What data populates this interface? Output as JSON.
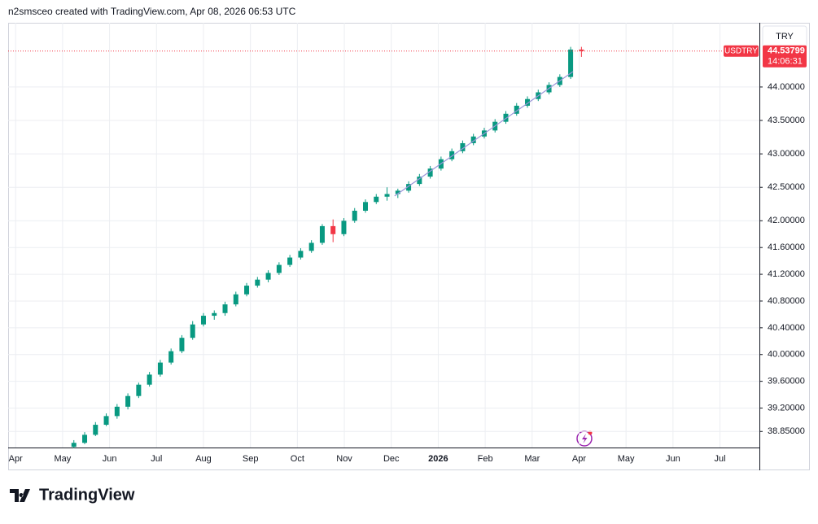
{
  "header": "n2smsceo created with TradingView.com, Apr 08, 2026 06:53 UTC",
  "logo": "TradingView",
  "chart_data": {
    "type": "candlestick",
    "currency": "TRY",
    "symbol": "USDTRY",
    "last": 44.53799,
    "countdown": "14:06:31",
    "up_color": "#089981",
    "down_color": "#f23645",
    "grid": true,
    "xlim": [
      -0.16,
      15.84
    ],
    "xticks": [
      {
        "value": 0,
        "label": "Apr"
      },
      {
        "value": 1,
        "label": "May"
      },
      {
        "value": 2,
        "label": "Jun"
      },
      {
        "value": 3,
        "label": "Jul"
      },
      {
        "value": 4,
        "label": "Aug"
      },
      {
        "value": 5,
        "label": "Sep"
      },
      {
        "value": 6,
        "label": "Oct"
      },
      {
        "value": 7,
        "label": "Nov"
      },
      {
        "value": 8,
        "label": "Dec"
      },
      {
        "value": 9,
        "label": "2026"
      },
      {
        "value": 10,
        "label": "Feb"
      },
      {
        "value": 11,
        "label": "Mar"
      },
      {
        "value": 12,
        "label": "Apr"
      },
      {
        "value": 13,
        "label": "May"
      },
      {
        "value": 14,
        "label": "Jun"
      },
      {
        "value": 15,
        "label": "Jul"
      }
    ],
    "ylim": [
      38.61,
      44.96
    ],
    "yticks": [
      {
        "value": 38.85,
        "label": "38.85000"
      },
      {
        "value": 39.2,
        "label": "39.20000"
      },
      {
        "value": 39.6,
        "label": "39.60000"
      },
      {
        "value": 40,
        "label": "40.00000"
      },
      {
        "value": 40.4,
        "label": "40.40000"
      },
      {
        "value": 40.8,
        "label": "40.80000"
      },
      {
        "value": 41.2,
        "label": "41.20000"
      },
      {
        "value": 41.6,
        "label": "41.60000"
      },
      {
        "value": 42,
        "label": "42.00000"
      },
      {
        "value": 42.5,
        "label": "42.50000"
      },
      {
        "value": 43,
        "label": "43.00000"
      },
      {
        "value": 43.5,
        "label": "43.50000"
      },
      {
        "value": 44,
        "label": "44.00000"
      }
    ],
    "x": [
      1.24,
      1.47,
      1.7,
      1.93,
      2.16,
      2.39,
      2.62,
      2.85,
      3.08,
      3.31,
      3.54,
      3.77,
      4.0,
      4.23,
      4.46,
      4.69,
      4.92,
      5.15,
      5.38,
      5.61,
      5.84,
      6.07,
      6.3,
      6.53,
      6.76,
      6.99,
      7.22,
      7.45,
      7.68,
      7.91,
      8.14,
      8.37,
      8.6,
      8.83,
      9.06,
      9.29,
      9.52,
      9.75,
      9.98,
      10.21,
      10.44,
      10.67,
      10.9,
      11.13,
      11.36,
      11.59,
      11.82,
      12.05
    ],
    "ohlc": [
      [
        38.62,
        38.72,
        38.6,
        38.68
      ],
      [
        38.68,
        38.84,
        38.66,
        38.8
      ],
      [
        38.8,
        38.99,
        38.78,
        38.95
      ],
      [
        38.95,
        39.12,
        38.93,
        39.08
      ],
      [
        39.08,
        39.26,
        39.04,
        39.22
      ],
      [
        39.22,
        39.42,
        39.18,
        39.38
      ],
      [
        39.38,
        39.58,
        39.35,
        39.55
      ],
      [
        39.55,
        39.74,
        39.52,
        39.7
      ],
      [
        39.7,
        39.92,
        39.67,
        39.88
      ],
      [
        39.88,
        40.09,
        39.85,
        40.05
      ],
      [
        40.05,
        40.29,
        40.02,
        40.25
      ],
      [
        40.25,
        40.5,
        40.22,
        40.45
      ],
      [
        40.45,
        40.62,
        40.42,
        40.58
      ],
      [
        40.58,
        40.66,
        40.52,
        40.62
      ],
      [
        40.62,
        40.79,
        40.58,
        40.75
      ],
      [
        40.75,
        40.94,
        40.72,
        40.9
      ],
      [
        40.9,
        41.07,
        40.87,
        41.03
      ],
      [
        41.03,
        41.16,
        41,
        41.12
      ],
      [
        41.12,
        41.26,
        41.08,
        41.22
      ],
      [
        41.22,
        41.38,
        41.19,
        41.34
      ],
      [
        41.34,
        41.49,
        41.31,
        41.45
      ],
      [
        41.45,
        41.59,
        41.42,
        41.55
      ],
      [
        41.55,
        41.71,
        41.52,
        41.67
      ],
      [
        41.67,
        41.95,
        41.64,
        41.92
      ],
      [
        41.92,
        42.02,
        41.68,
        41.8
      ],
      [
        41.8,
        42.04,
        41.77,
        42
      ],
      [
        42,
        42.19,
        41.97,
        42.15
      ],
      [
        42.15,
        42.32,
        42.12,
        42.28
      ],
      [
        42.28,
        42.4,
        42.25,
        42.36
      ],
      [
        42.36,
        42.5,
        42.3,
        42.4
      ],
      [
        42.4,
        42.48,
        42.34,
        42.45
      ],
      [
        42.45,
        42.59,
        42.42,
        42.55
      ],
      [
        42.55,
        42.7,
        42.52,
        42.66
      ],
      [
        42.66,
        42.82,
        42.63,
        42.78
      ],
      [
        42.78,
        42.96,
        42.75,
        42.92
      ],
      [
        42.92,
        43.08,
        42.89,
        43.04
      ],
      [
        43.04,
        43.2,
        43.01,
        43.16
      ],
      [
        43.16,
        43.3,
        43.13,
        43.26
      ],
      [
        43.26,
        43.39,
        43.23,
        43.35
      ],
      [
        43.35,
        43.52,
        43.32,
        43.48
      ],
      [
        43.48,
        43.64,
        43.45,
        43.6
      ],
      [
        43.6,
        43.76,
        43.57,
        43.72
      ],
      [
        43.72,
        43.86,
        43.69,
        43.82
      ],
      [
        43.82,
        43.96,
        43.79,
        43.92
      ],
      [
        43.92,
        44.07,
        43.89,
        44.03
      ],
      [
        44.03,
        44.19,
        44,
        44.15
      ],
      [
        44.15,
        44.6,
        44.12,
        44.56
      ],
      [
        44.56,
        44.6,
        44.45,
        44.53799
      ]
    ],
    "trendline": {
      "color": "#9c95d9",
      "x": [
        8.07,
        11.87
      ],
      "values": [
        42.37,
        44.23
      ]
    }
  }
}
